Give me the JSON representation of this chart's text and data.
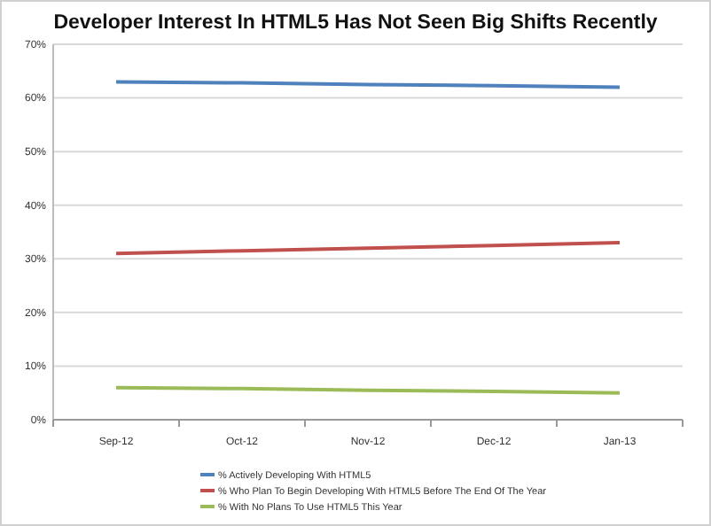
{
  "chart_data": {
    "type": "line",
    "title": "Developer Interest In HTML5 Has Not Seen Big Shifts Recently",
    "categories": [
      "Sep-12",
      "Oct-12",
      "Nov-12",
      "Dec-12",
      "Jan-13"
    ],
    "series": [
      {
        "name": "% Actively Developing With HTML5",
        "color": "#4f81bd",
        "values": [
          63,
          62.8,
          62.5,
          62.3,
          62
        ]
      },
      {
        "name": "% Who Plan To Begin Developing With HTML5 Before The End Of The Year",
        "color": "#c0504d",
        "values": [
          31,
          31.5,
          32,
          32.5,
          33
        ]
      },
      {
        "name": "% With No Plans To Use HTML5 This Year",
        "color": "#9bbb59",
        "values": [
          6,
          5.8,
          5.5,
          5.3,
          5
        ]
      }
    ],
    "ylim": [
      0,
      70
    ],
    "yticks": [
      {
        "value": 0,
        "label": "0%"
      },
      {
        "value": 10,
        "label": "10%"
      },
      {
        "value": 20,
        "label": "20%"
      },
      {
        "value": 30,
        "label": "30%"
      },
      {
        "value": 40,
        "label": "40%"
      },
      {
        "value": 50,
        "label": "50%"
      },
      {
        "value": 60,
        "label": "60%"
      },
      {
        "value": 70,
        "label": "70%"
      }
    ],
    "grid": "y",
    "legend": "bottom",
    "marker": "none",
    "line_style": "solid"
  }
}
